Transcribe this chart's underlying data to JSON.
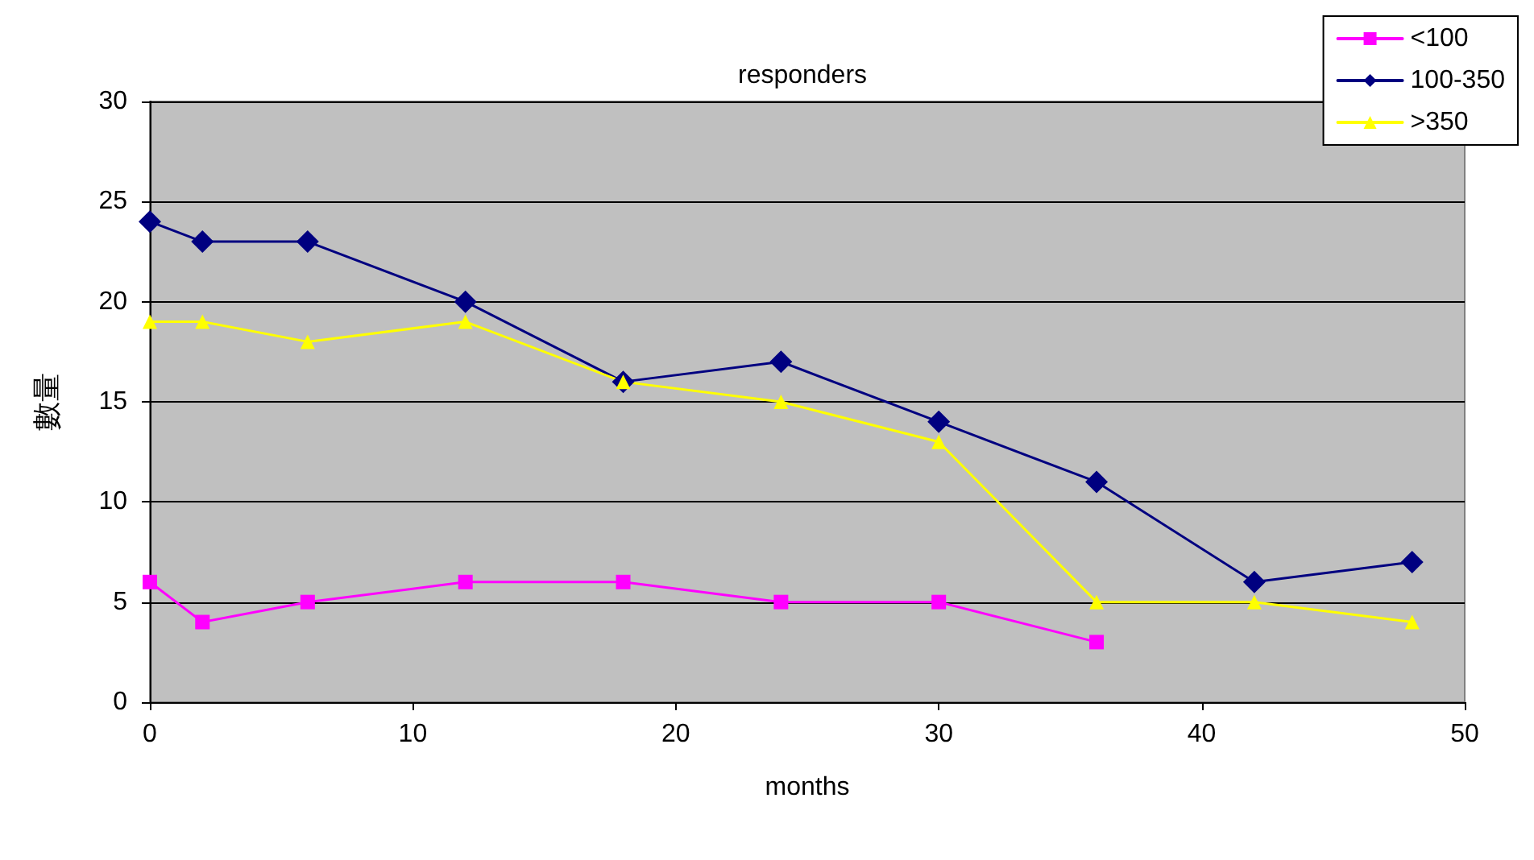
{
  "chart_data": {
    "type": "line",
    "title": "responders",
    "xlabel": "months",
    "ylabel": "數量",
    "x": [
      0,
      2,
      6,
      12,
      18,
      24,
      30,
      36,
      42,
      48
    ],
    "series": [
      {
        "name": "<100",
        "color": "#ff00ff",
        "marker": "square",
        "x": [
          0,
          2,
          6,
          12,
          18,
          24,
          30,
          36
        ],
        "values": [
          6,
          4,
          5,
          6,
          6,
          5,
          5,
          3
        ]
      },
      {
        "name": "100-350",
        "color": "#000080",
        "marker": "diamond",
        "values": [
          24,
          23,
          23,
          20,
          16,
          17,
          14,
          11,
          6,
          7
        ]
      },
      {
        "name": ">350",
        "color": "#ffff00",
        "marker": "triangle",
        "values": [
          19,
          19,
          18,
          19,
          16,
          15,
          13,
          5,
          5,
          4
        ]
      }
    ],
    "xlim": [
      0,
      50
    ],
    "xticks": [
      0,
      10,
      20,
      30,
      40,
      50
    ],
    "ylim": [
      0,
      30
    ],
    "yticks": [
      0,
      5,
      10,
      15,
      20,
      25,
      30
    ],
    "grid": "y",
    "legend": "top right",
    "line_style": "solid"
  }
}
